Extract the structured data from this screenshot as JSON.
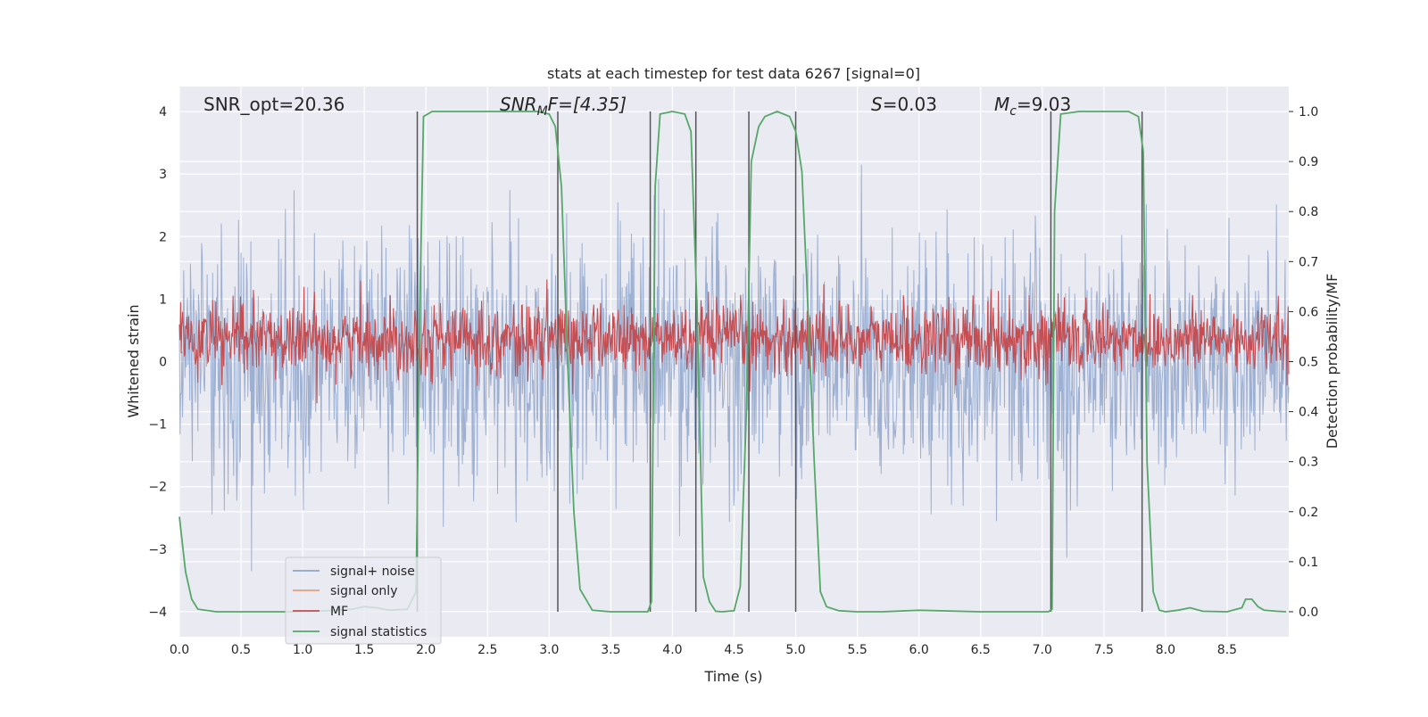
{
  "chart_data": {
    "type": "line",
    "title": "stats at each timestep for test data 6267 [signal=0]",
    "xlabel": "Time (s)",
    "ylabel_left": "Whitened strain",
    "ylabel_right": "Detection probability/MF",
    "xlim": [
      0,
      9.0
    ],
    "ylim_left": [
      -4.4,
      4.4
    ],
    "ylim_right": [
      -0.05,
      1.05
    ],
    "xticks": [
      0.0,
      0.5,
      1.0,
      1.5,
      2.0,
      2.5,
      3.0,
      3.5,
      4.0,
      4.5,
      5.0,
      5.5,
      6.0,
      6.5,
      7.0,
      7.5,
      8.0,
      8.5
    ],
    "xtick_labels": [
      "0.0",
      "0.5",
      "1.0",
      "1.5",
      "2.0",
      "2.5",
      "3.0",
      "3.5",
      "4.0",
      "4.5",
      "5.0",
      "5.5",
      "6.0",
      "6.5",
      "7.0",
      "7.5",
      "8.0",
      "8.5"
    ],
    "yticks_left": [
      -4,
      -3,
      -2,
      -1,
      0,
      1,
      2,
      3,
      4
    ],
    "ytick_labels_left": [
      "−4",
      "−3",
      "−2",
      "−1",
      "0",
      "1",
      "2",
      "3",
      "4"
    ],
    "yticks_right": [
      0.0,
      0.1,
      0.2,
      0.3,
      0.4,
      0.5,
      0.6,
      0.7,
      0.8,
      0.9,
      1.0
    ],
    "ytick_labels_right": [
      "0.0",
      "0.1",
      "0.2",
      "0.3",
      "0.4",
      "0.5",
      "0.6",
      "0.7",
      "0.8",
      "0.9",
      "1.0"
    ],
    "annotations": {
      "snr_opt": "SNR_opt=20.36",
      "snr_mf_main": "SNR",
      "snr_mf_sub": "M",
      "snr_mf_rest": "F=[4.35]",
      "s_main": "S",
      "s_rest": "=0.03",
      "mc_main": "M",
      "mc_sub": "c",
      "mc_rest": "=9.03"
    },
    "vertical_lines_x": [
      1.93,
      3.07,
      3.82,
      4.19,
      4.62,
      5.0,
      7.07,
      7.81
    ],
    "series": [
      {
        "name": "signal+ noise",
        "color": "#8fa6cc",
        "axis": "left",
        "noise_sigma": 0.95,
        "samples": 1800
      },
      {
        "name": "signal only",
        "color": "#e89d7f",
        "axis": "left",
        "values": []
      },
      {
        "name": "MF",
        "color": "#c44e52",
        "axis": "right",
        "mean": 0.545,
        "spread": 0.035,
        "samples": 1800
      },
      {
        "name": "signal statistics",
        "color": "#55a868",
        "axis": "right",
        "x": [
          0.0,
          0.05,
          0.1,
          0.15,
          0.3,
          0.6,
          0.9,
          1.2,
          1.4,
          1.5,
          1.6,
          1.7,
          1.85,
          1.92,
          1.95,
          1.98,
          2.05,
          2.3,
          2.6,
          2.9,
          3.0,
          3.05,
          3.1,
          3.15,
          3.2,
          3.25,
          3.35,
          3.5,
          3.7,
          3.8,
          3.83,
          3.86,
          3.9,
          4.0,
          4.1,
          4.15,
          4.2,
          4.25,
          4.3,
          4.35,
          4.4,
          4.5,
          4.55,
          4.6,
          4.64,
          4.7,
          4.75,
          4.85,
          4.95,
          5.0,
          5.05,
          5.1,
          5.15,
          5.2,
          5.25,
          5.35,
          5.5,
          5.7,
          6.0,
          6.5,
          7.0,
          7.05,
          7.08,
          7.1,
          7.15,
          7.3,
          7.5,
          7.7,
          7.78,
          7.82,
          7.85,
          7.9,
          7.95,
          8.0,
          8.1,
          8.2,
          8.3,
          8.5,
          8.62,
          8.65,
          8.7,
          8.75,
          8.8,
          8.9,
          8.98
        ],
        "values": [
          0.19,
          0.08,
          0.025,
          0.005,
          0.0,
          0.0,
          0.0,
          0.002,
          0.005,
          0.01,
          0.008,
          0.003,
          0.005,
          0.04,
          0.6,
          0.99,
          1.0,
          1.0,
          1.0,
          1.0,
          0.995,
          0.97,
          0.85,
          0.5,
          0.2,
          0.045,
          0.003,
          0.0,
          0.0,
          0.0,
          0.02,
          0.85,
          0.995,
          1.0,
          0.995,
          0.96,
          0.6,
          0.07,
          0.02,
          0.001,
          0.0,
          0.002,
          0.05,
          0.4,
          0.9,
          0.97,
          0.99,
          1.0,
          0.99,
          0.96,
          0.88,
          0.6,
          0.3,
          0.04,
          0.01,
          0.002,
          0.0,
          0.0,
          0.003,
          0.0,
          0.0,
          0.0,
          0.005,
          0.8,
          0.995,
          1.0,
          1.0,
          1.0,
          0.99,
          0.92,
          0.3,
          0.04,
          0.003,
          0.0,
          0.003,
          0.008,
          0.001,
          0.0,
          0.008,
          0.025,
          0.025,
          0.01,
          0.003,
          0.001,
          0.0
        ]
      }
    ],
    "legend_position": "lower-left"
  }
}
